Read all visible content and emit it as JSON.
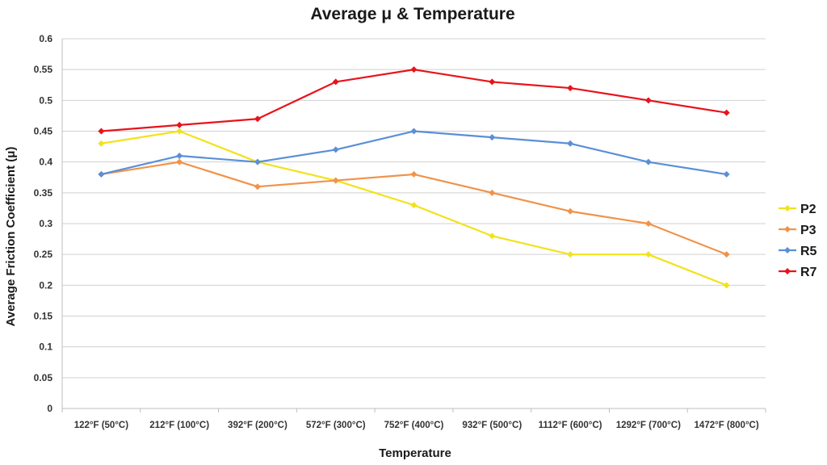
{
  "chart_data": {
    "type": "line",
    "title": "Average μ & Temperature",
    "xlabel": "Temperature",
    "ylabel": "Average Friction Coefficient (μ)",
    "categories": [
      "122°F (50°C)",
      "212°F (100°C)",
      "392°F (200°C)",
      "572°F (300°C)",
      "752°F (400°C)",
      "932°F (500°C)",
      "1112°F (600°C)",
      "1292°F (700°C)",
      "1472°F (800°C)"
    ],
    "ylim": [
      0,
      0.6
    ],
    "yticks": [
      "0",
      "0.05",
      "0.1",
      "0.15",
      "0.2",
      "0.25",
      "0.3",
      "0.35",
      "0.4",
      "0.45",
      "0.5",
      "0.55",
      "0.6"
    ],
    "grid": true,
    "legend_position": "right",
    "series": [
      {
        "name": "P2",
        "color": "#f2e21b",
        "values": [
          0.43,
          0.45,
          0.4,
          0.37,
          0.33,
          0.28,
          0.25,
          0.25,
          0.2
        ]
      },
      {
        "name": "P3",
        "color": "#f0934a",
        "values": [
          0.38,
          0.4,
          0.36,
          0.37,
          0.38,
          0.35,
          0.32,
          0.3,
          0.25
        ]
      },
      {
        "name": "R5",
        "color": "#5b8fd6",
        "values": [
          0.38,
          0.41,
          0.4,
          0.42,
          0.45,
          0.44,
          0.43,
          0.4,
          0.38
        ]
      },
      {
        "name": "R7",
        "color": "#e8131b",
        "values": [
          0.45,
          0.46,
          0.47,
          0.53,
          0.55,
          0.53,
          0.52,
          0.5,
          0.48
        ]
      }
    ]
  }
}
